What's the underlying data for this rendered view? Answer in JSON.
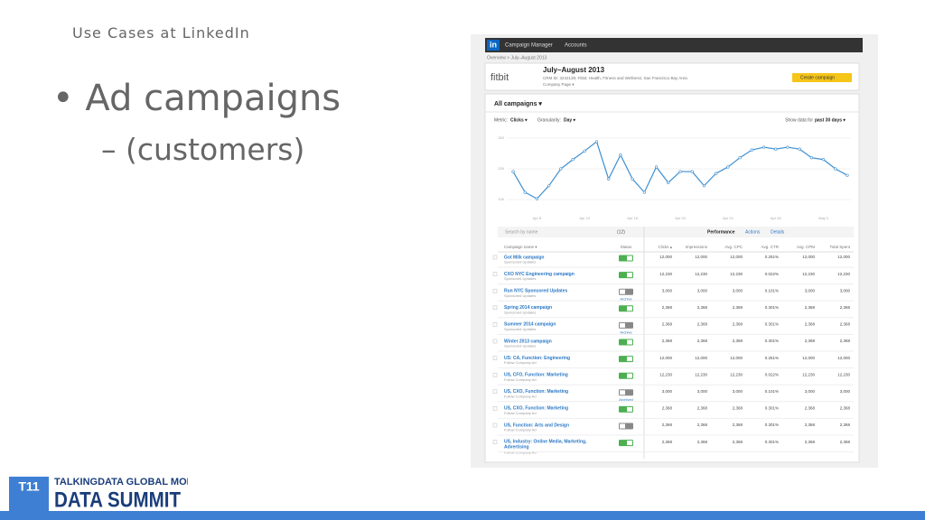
{
  "slide": {
    "title": "Use Cases at LinkedIn",
    "bullet": "Ad campaigns",
    "sub_bullet": "– (customers)",
    "logo": {
      "mark": "T11",
      "line1": "TALKINGDATA GLOBAL MOBILE",
      "line2": "DATA SUMMIT"
    }
  },
  "screenshot": {
    "nav": {
      "logo": "in",
      "items": [
        "Campaign Manager",
        "Accounts"
      ]
    },
    "breadcrumb": "Overview > July–August 2013",
    "account": {
      "brand": "fitbit",
      "name": "July–August 2013",
      "details": "CRM ID: 3242139; Fitbit; Health, Fitness and Wellness; San Francisco Bay Area",
      "page": "Company Page ▾",
      "button": "Create campaign"
    },
    "section": "All campaigns ▾",
    "controls": {
      "metric_label": "Metric:",
      "metric": "Clicks ▾",
      "granularity_label": "Granularity:",
      "granularity": "Day ▾",
      "range_label": "Show data for",
      "range": "past 30 days ▾"
    },
    "chart": {
      "type": "line",
      "categories": [
        null,
        null,
        "Apr 8",
        null,
        null,
        null,
        "Apr 12",
        null,
        null,
        null,
        "Apr 16",
        null,
        null,
        null,
        "Apr 20",
        null,
        null,
        null,
        "Apr 24",
        null,
        null,
        null,
        "Apr 28",
        null,
        null,
        null,
        "May 2",
        null,
        null
      ],
      "values": [
        191,
        124,
        103,
        145,
        200,
        230,
        258,
        288,
        167,
        245,
        167,
        124,
        206,
        155,
        191,
        191,
        145,
        185,
        206,
        236,
        261,
        270,
        264,
        270,
        264,
        236,
        230,
        200,
        179
      ],
      "color": "#3d8fd1",
      "ylim": [
        80,
        320
      ],
      "yticks": [
        100,
        200,
        300
      ],
      "grid": true
    },
    "toolbar": {
      "search": "Search by name",
      "filter": "(12)",
      "tabs": [
        "Performance",
        "Actions",
        "Details"
      ]
    },
    "table": {
      "columns": [
        "Campaign name ▾",
        "Status",
        "Clicks ▴",
        "Impressions",
        "Avg. CPC",
        "Avg. CTR",
        "Avg. CPM",
        "Total Spent"
      ],
      "rows": [
        {
          "name": "Got Milk campaign",
          "type": "Sponsored Updates",
          "status": "on",
          "cells": [
            "12,000",
            "12,000",
            "12,000",
            "0.251%",
            "12,000",
            "12,000"
          ]
        },
        {
          "name": "CXO NYC Engineering campaign",
          "type": "Sponsored Updates",
          "status": "on",
          "cells": [
            "12,230",
            "12,230",
            "12,230",
            "0.022%",
            "12,230",
            "12,230"
          ]
        },
        {
          "name": "Run NYC Sponsored Updates",
          "type": "Sponsored Updates",
          "status": "off",
          "note": "Archive",
          "cells": [
            "3,000",
            "3,000",
            "3,000",
            "0.101%",
            "3,000",
            "3,000"
          ]
        },
        {
          "name": "Spring 2014 campaign",
          "type": "Sponsored Updates",
          "status": "on",
          "cells": [
            "2,368",
            "2,368",
            "2,368",
            "0.301%",
            "2,368",
            "2,368"
          ]
        },
        {
          "name": "Summer 2014 campaign",
          "type": "Sponsored Updates",
          "status": "off",
          "note": "Archive",
          "cells": [
            "2,368",
            "2,368",
            "2,368",
            "0.301%",
            "2,368",
            "2,368"
          ]
        },
        {
          "name": "Winter 2013 campaign",
          "type": "Sponsored Updates",
          "status": "on",
          "cells": [
            "2,368",
            "2,368",
            "2,368",
            "0.301%",
            "2,368",
            "2,368"
          ]
        },
        {
          "name": "US: CA, Function: Engineering",
          "type": "Follow Company Ad",
          "status": "on",
          "cells": [
            "12,000",
            "12,000",
            "12,000",
            "0.251%",
            "12,000",
            "12,000"
          ]
        },
        {
          "name": "US, CFO, Function: Marketing",
          "type": "Follow Company Ad",
          "status": "on",
          "cells": [
            "12,230",
            "12,230",
            "12,230",
            "0.022%",
            "12,230",
            "12,230"
          ]
        },
        {
          "name": "US, CXO, Function: Marketing",
          "type": "Follow Company Ad",
          "status": "off",
          "note": "Archived",
          "cells": [
            "3,000",
            "3,000",
            "3,000",
            "0.101%",
            "3,000",
            "3,000"
          ]
        },
        {
          "name": "US, CXO, Function: Marketing",
          "type": "Follow Company Ad",
          "status": "on",
          "cells": [
            "2,368",
            "2,368",
            "2,368",
            "0.301%",
            "2,368",
            "2,368"
          ]
        },
        {
          "name": "US, Function: Arts and Design",
          "type": "Follow Company Ad",
          "status": "off",
          "cells": [
            "2,368",
            "2,368",
            "2,368",
            "0.301%",
            "2,368",
            "2,368"
          ]
        },
        {
          "name": "US, Industry: Online Media, Marketing, Advertising",
          "type": "Follow Company Ad",
          "status": "on",
          "cells": [
            "2,368",
            "2,368",
            "2,368",
            "0.301%",
            "2,368",
            "2,368"
          ]
        }
      ]
    }
  }
}
